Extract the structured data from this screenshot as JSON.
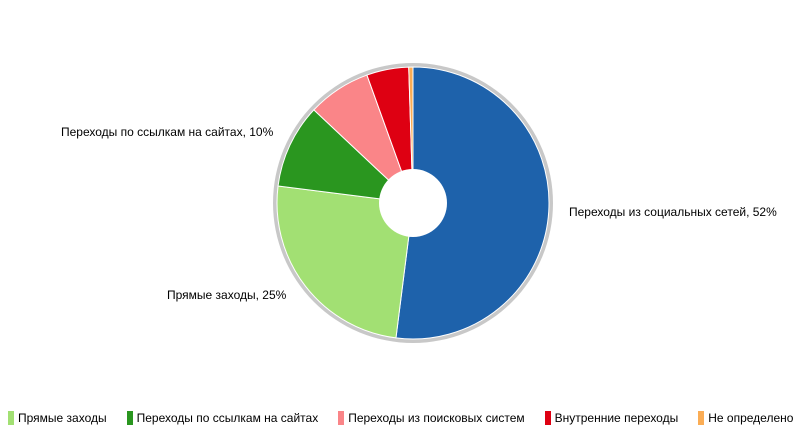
{
  "chart_data": {
    "type": "pie",
    "variant": "donut",
    "slices": [
      {
        "name": "Переходы из социальных сетей",
        "value": 52,
        "color": "#1e62ab"
      },
      {
        "name": "Прямые заходы",
        "value": 25,
        "color": "#a2e073"
      },
      {
        "name": "Переходы по ссылкам на сайтах",
        "value": 10,
        "color": "#2a961f"
      },
      {
        "name": "Переходы из поисковых систем",
        "value": 7.5,
        "color": "#fa8588"
      },
      {
        "name": "Внутренние переходы",
        "value": 5,
        "color": "#de0012"
      },
      {
        "name": "Не определено",
        "value": 0.5,
        "color": "#fbad55"
      }
    ],
    "slice_labels": [
      {
        "text": "Переходы из социальных сетей, 52%"
      },
      {
        "text": "Прямые заходы, 25%"
      },
      {
        "text": "Переходы по ссылкам на сайтах, 10%"
      }
    ],
    "legend": [
      {
        "label": "Прямые заходы",
        "color": "#a2e073"
      },
      {
        "label": "Переходы по ссылкам на сайтах",
        "color": "#2a961f"
      },
      {
        "label": "Переходы из поисковых систем",
        "color": "#fa8588"
      },
      {
        "label": "Внутренние переходы",
        "color": "#de0012"
      },
      {
        "label": "Не определено",
        "color": "#fbad55"
      }
    ],
    "legend_position": "bottom",
    "ring_color": "#c8c8c8"
  }
}
